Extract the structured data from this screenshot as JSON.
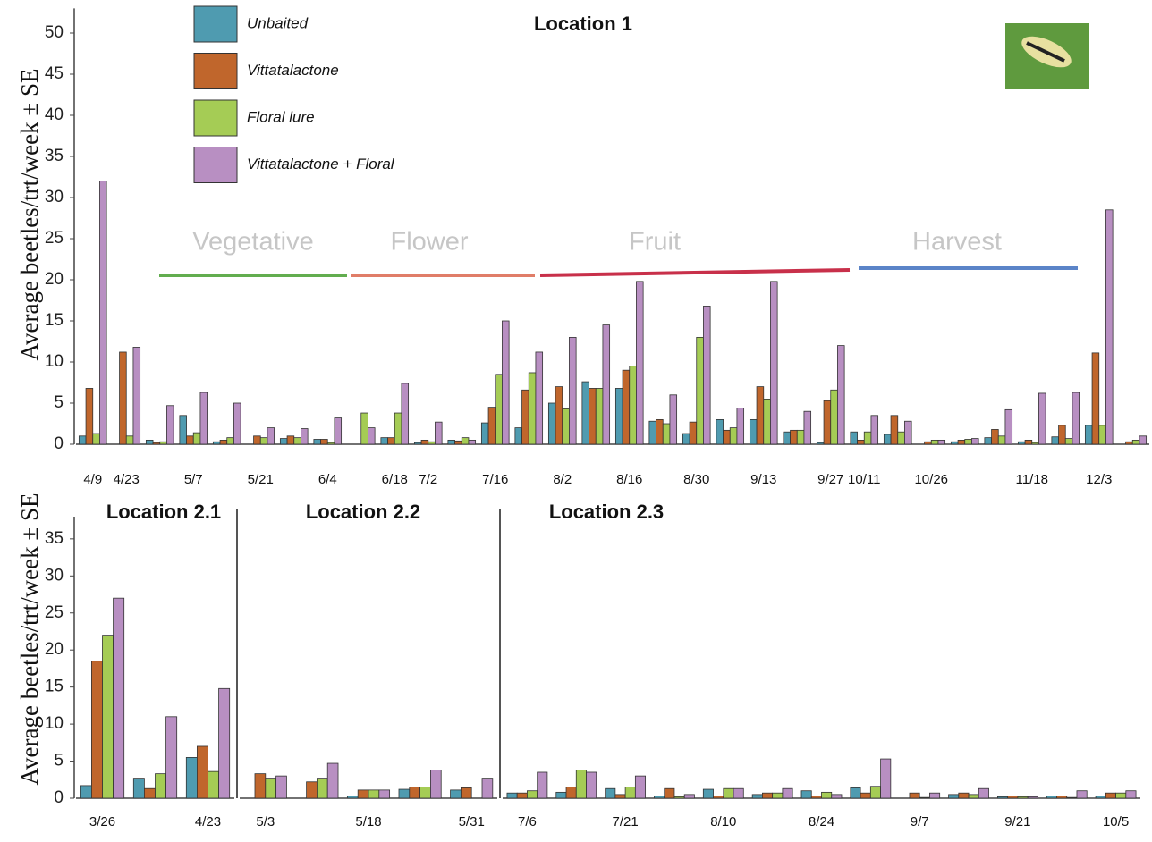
{
  "chart_data": [
    {
      "type": "bar",
      "title": "Location 1",
      "ylabel": "Average beetles/trt/week ± SE",
      "ylim": [
        0,
        53
      ],
      "yticks": [
        0,
        5,
        10,
        15,
        20,
        25,
        30,
        35,
        40,
        45,
        50
      ],
      "categories": [
        "4/9",
        "4/23",
        null,
        "5/7",
        null,
        "5/21",
        null,
        "6/4",
        null,
        "6/18",
        "7/2",
        null,
        "7/16",
        null,
        "8/2",
        null,
        "8/16",
        null,
        "8/30",
        null,
        "9/13",
        null,
        "9/27",
        "10/11",
        null,
        "10/26",
        null,
        null,
        "11/18",
        null,
        "12/3",
        null
      ],
      "series": [
        {
          "name": "Unbaited",
          "color": "#4f9bb0",
          "values": [
            1,
            0,
            0.5,
            3.5,
            0.3,
            0,
            0.7,
            0.6,
            0,
            0.8,
            0.2,
            0.5,
            2.6,
            2,
            5,
            7.6,
            6.8,
            2.8,
            1.3,
            3,
            3,
            1.5,
            0.2,
            1.5,
            1.2,
            0,
            0.3,
            0.8,
            0.3,
            0.9,
            2.3,
            0
          ]
        },
        {
          "name": "Vittatalactone",
          "color": "#c0662c",
          "values": [
            6.8,
            11.2,
            0.2,
            1,
            0.5,
            1,
            1,
            0.6,
            0,
            0.8,
            0.5,
            0.4,
            4.5,
            6.6,
            7,
            6.8,
            9,
            3,
            2.7,
            1.7,
            7,
            1.7,
            5.3,
            0.5,
            3.5,
            0.3,
            0.5,
            1.8,
            0.5,
            2.3,
            11.1,
            0.3
          ]
        },
        {
          "name": "Floral lure",
          "color": "#a5cc55",
          "values": [
            1.3,
            1,
            0.3,
            1.4,
            0.8,
            0.8,
            0.8,
            0.2,
            3.8,
            3.8,
            0.3,
            0.8,
            8.5,
            8.7,
            4.3,
            6.8,
            9.5,
            2.5,
            13,
            2,
            5.5,
            1.7,
            6.6,
            1.5,
            1.5,
            0.5,
            0.6,
            1,
            0.2,
            0.7,
            2.3,
            0.5
          ]
        },
        {
          "name": "Vittatalactone + Floral",
          "color": "#b88fc2",
          "values": [
            32,
            11.8,
            4.7,
            6.3,
            5,
            2,
            1.9,
            3.2,
            2,
            7.4,
            2.7,
            0.5,
            15,
            11.2,
            13,
            14.5,
            19.8,
            6,
            16.8,
            4.4,
            19.8,
            4,
            12,
            3.5,
            2.8,
            0.5,
            0.7,
            4.2,
            6.2,
            6.3,
            28.5,
            1
          ]
        }
      ],
      "phases": [
        {
          "label": "Vegetative",
          "color": "#62ad4f"
        },
        {
          "label": "Flower",
          "color": "#e07d68"
        },
        {
          "label": "Fruit",
          "color": "#c8304a"
        },
        {
          "label": "Harvest",
          "color": "#5b84c8"
        }
      ]
    },
    {
      "type": "bar",
      "ylabel": "Average beetles/trt/week ± SE",
      "ylim": [
        0,
        38
      ],
      "yticks": [
        0,
        5,
        10,
        15,
        20,
        25,
        30,
        35
      ],
      "panels": [
        {
          "title": "Location 2.1",
          "categories": [
            "3/26",
            null,
            "4/23"
          ],
          "series": [
            {
              "color": "#4f9bb0",
              "values": [
                1.7,
                2.7,
                5.5
              ]
            },
            {
              "color": "#c0662c",
              "values": [
                18.5,
                1.3,
                7
              ]
            },
            {
              "color": "#a5cc55",
              "values": [
                22,
                3.3,
                3.6
              ]
            },
            {
              "color": "#b88fc2",
              "values": [
                27,
                11,
                14.8
              ]
            }
          ]
        },
        {
          "title": "Location 2.2",
          "categories": [
            "5/3",
            null,
            "5/18",
            null,
            "5/31"
          ],
          "series": [
            {
              "color": "#4f9bb0",
              "values": [
                0,
                0,
                0.3,
                1.2,
                1.1
              ]
            },
            {
              "color": "#c0662c",
              "values": [
                3.3,
                2.2,
                1.1,
                1.5,
                1.4
              ]
            },
            {
              "color": "#a5cc55",
              "values": [
                2.7,
                2.7,
                1.1,
                1.5,
                0
              ]
            },
            {
              "color": "#b88fc2",
              "values": [
                3,
                4.7,
                1.1,
                3.8,
                2.7
              ]
            }
          ]
        },
        {
          "title": "Location 2.3",
          "categories": [
            "7/6",
            null,
            "7/21",
            null,
            "8/10",
            null,
            "8/24",
            null,
            "9/7",
            null,
            "9/21",
            null,
            "10/5"
          ],
          "series": [
            {
              "color": "#4f9bb0",
              "values": [
                0.7,
                0.8,
                1.3,
                0.3,
                1.2,
                0.5,
                1,
                1.4,
                0,
                0.5,
                0.2,
                0.3,
                0.3
              ]
            },
            {
              "color": "#c0662c",
              "values": [
                0.7,
                1.5,
                0.5,
                1.3,
                0.3,
                0.7,
                0.3,
                0.7,
                0.7,
                0.7,
                0.3,
                0.3,
                0.7
              ]
            },
            {
              "color": "#a5cc55",
              "values": [
                1,
                3.8,
                1.5,
                0.2,
                1.3,
                0.7,
                0.8,
                1.6,
                0.1,
                0.5,
                0.2,
                0.1,
                0.7
              ]
            },
            {
              "color": "#b88fc2",
              "values": [
                3.5,
                3.5,
                3,
                0.5,
                1.3,
                1.3,
                0.5,
                5.3,
                0.7,
                1.3,
                0.2,
                1,
                1
              ]
            }
          ]
        }
      ]
    }
  ]
}
